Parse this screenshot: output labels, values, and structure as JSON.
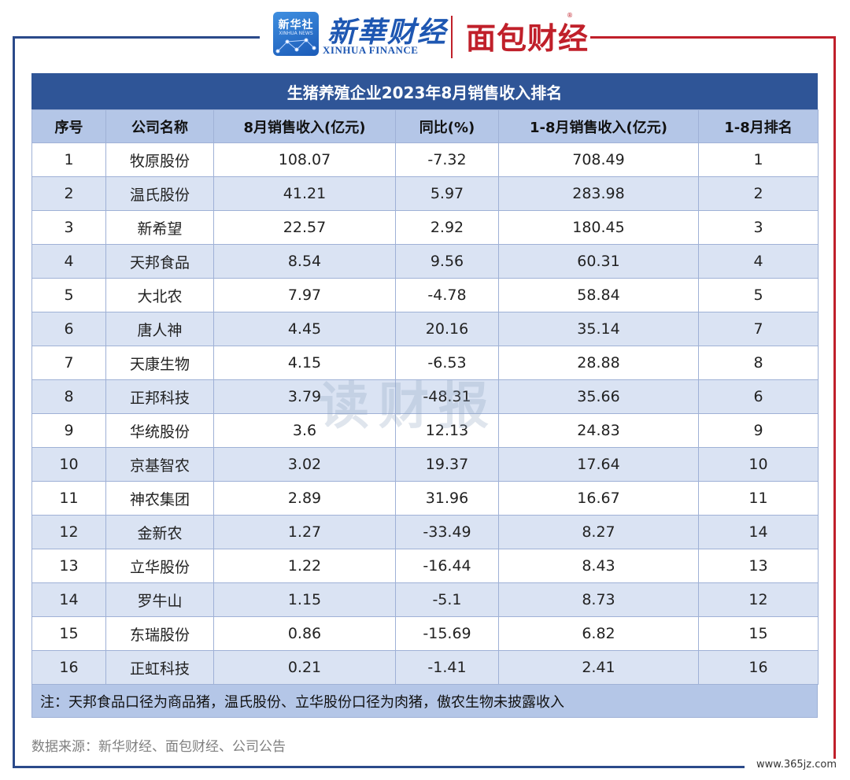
{
  "header": {
    "logo_badge_cn": "新华社",
    "logo_badge_en": "XINHUA NEWS",
    "brand_cn": "新華财经",
    "brand_en": "XINHUA FINANCE",
    "brand2": "面包财经",
    "brand2_mark": "®"
  },
  "table": {
    "title": "生猪养殖企业2023年8月销售收入排名",
    "columns": [
      "序号",
      "公司名称",
      "8月销售收入(亿元)",
      "同比(%)",
      "1-8月销售收入(亿元)",
      "1-8月排名"
    ],
    "rows": [
      [
        "1",
        "牧原股份",
        "108.07",
        "-7.32",
        "708.49",
        "1"
      ],
      [
        "2",
        "温氏股份",
        "41.21",
        "5.97",
        "283.98",
        "2"
      ],
      [
        "3",
        "新希望",
        "22.57",
        "2.92",
        "180.45",
        "3"
      ],
      [
        "4",
        "天邦食品",
        "8.54",
        "9.56",
        "60.31",
        "4"
      ],
      [
        "5",
        "大北农",
        "7.97",
        "-4.78",
        "58.84",
        "5"
      ],
      [
        "6",
        "唐人神",
        "4.45",
        "20.16",
        "35.14",
        "7"
      ],
      [
        "7",
        "天康生物",
        "4.15",
        "-6.53",
        "28.88",
        "8"
      ],
      [
        "8",
        "正邦科技",
        "3.79",
        "-48.31",
        "35.66",
        "6"
      ],
      [
        "9",
        "华统股份",
        "3.6",
        "12.13",
        "24.83",
        "9"
      ],
      [
        "10",
        "京基智农",
        "3.02",
        "19.37",
        "17.64",
        "10"
      ],
      [
        "11",
        "神农集团",
        "2.89",
        "31.96",
        "16.67",
        "11"
      ],
      [
        "12",
        "金新农",
        "1.27",
        "-33.49",
        "8.27",
        "14"
      ],
      [
        "13",
        "立华股份",
        "1.22",
        "-16.44",
        "8.43",
        "13"
      ],
      [
        "14",
        "罗牛山",
        "1.15",
        "-5.1",
        "8.73",
        "12"
      ],
      [
        "15",
        "东瑞股份",
        "0.86",
        "-15.69",
        "6.82",
        "15"
      ],
      [
        "16",
        "正虹科技",
        "0.21",
        "-1.41",
        "2.41",
        "16"
      ]
    ],
    "note": "注：天邦食品口径为商品猪，温氏股份、立华股份口径为肉猪，傲农生物未披露收入"
  },
  "watermark": "读财报",
  "source": "数据来源：新华财经、面包财经、公司公告",
  "site": "www.365jz.com",
  "colors": {
    "title_bg": "#2f5597",
    "header_bg": "#b4c6e7",
    "stripe": "#dae3f3",
    "frame_blue": "#2b4a8a",
    "frame_red": "#c0202a"
  }
}
